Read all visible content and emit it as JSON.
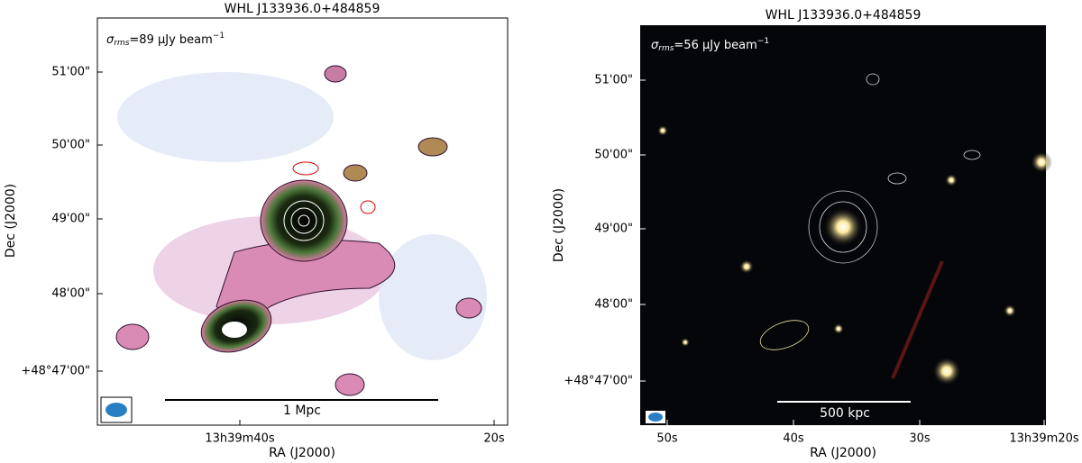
{
  "panels": [
    {
      "title": "WHL J133936.0+484859",
      "annotation": {
        "symbol": "σ",
        "subscript": "rms",
        "text": "=89 μJy beam",
        "superscript": "−1"
      },
      "yticks": [
        "51'00\"",
        "50'00\"",
        "49'00\"",
        "48'00\"",
        "+48°47'00\""
      ],
      "xticks": [
        "13h39m40s",
        "20s"
      ],
      "xlabel": "RA (J2000)",
      "ylabel": "Dec (J2000)",
      "scalebar": "1 Mpc"
    },
    {
      "title": "WHL J133936.0+484859",
      "annotation": {
        "symbol": "σ",
        "subscript": "rms",
        "text": "=56 μJy beam",
        "superscript": "−1"
      },
      "yticks": [
        "51'00\"",
        "50'00\"",
        "49'00\"",
        "48'00\"",
        "+48°47'00\""
      ],
      "xticks": [
        "50s",
        "40s",
        "30s",
        "13h39m20s"
      ],
      "xlabel": "RA (J2000)",
      "ylabel": "Dec (J2000)",
      "scalebar": "500 kpc"
    }
  ]
}
